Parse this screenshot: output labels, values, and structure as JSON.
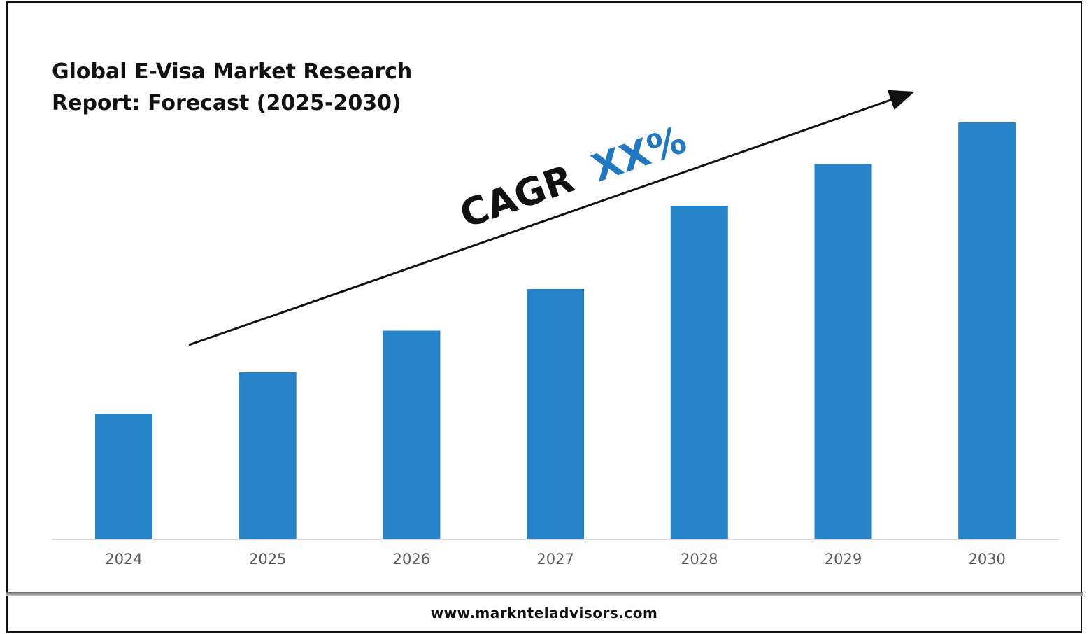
{
  "title_line1": "Global E-Visa Market Research",
  "title_line2": "Report: Forecast (2025-2030)",
  "footer": "www.marknteladvisors.com",
  "cagr": {
    "label": "CAGR",
    "value": "XX%",
    "label_color": "#111111",
    "value_color": "#1F78C1"
  },
  "colors": {
    "bar": "#2884C8",
    "axis": "#d9d9d9",
    "tick": "#595959"
  },
  "chart_data": {
    "type": "bar",
    "title": "Global E-Visa Market Research Report: Forecast (2025-2030)",
    "categories": [
      "2024",
      "2025",
      "2026",
      "2027",
      "2028",
      "2029",
      "2030"
    ],
    "values": [
      30,
      40,
      50,
      60,
      80,
      90,
      100
    ],
    "ylim": [
      0,
      100
    ],
    "grid": false,
    "legend": "none"
  }
}
